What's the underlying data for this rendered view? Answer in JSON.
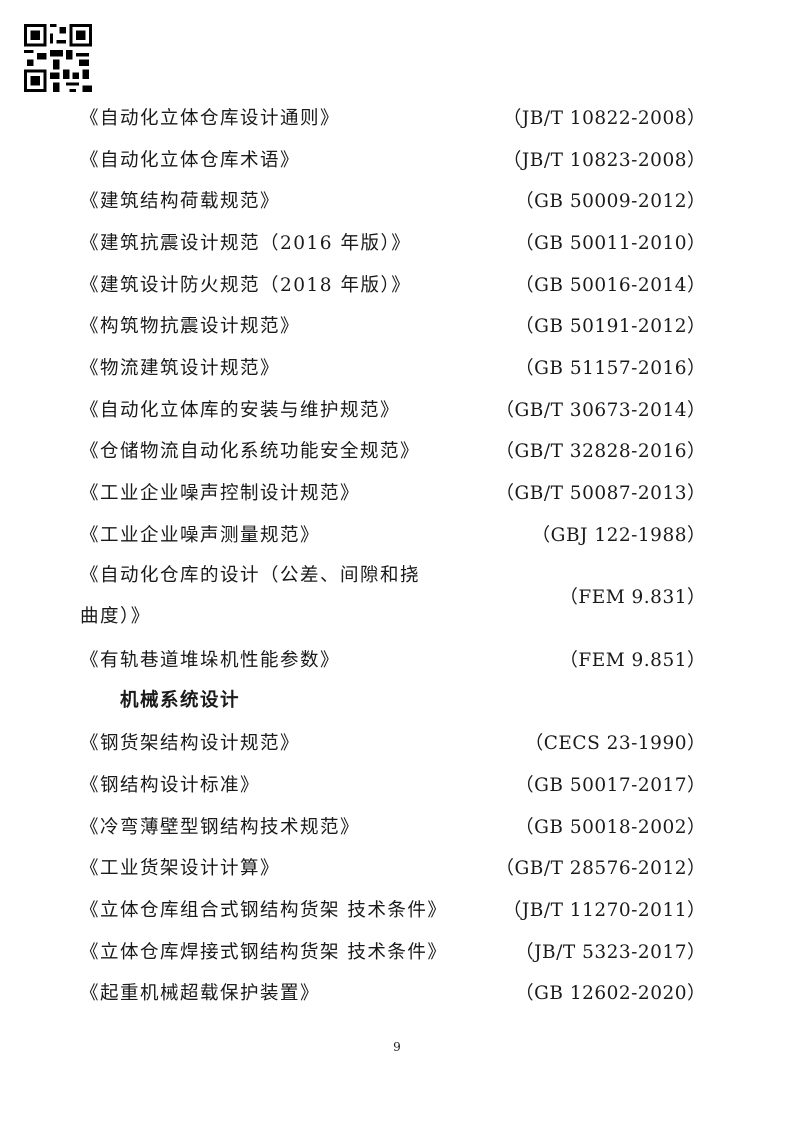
{
  "page_number": "9",
  "sections": [
    {
      "heading": "",
      "items": [
        {
          "title": [
            "《自动化立体仓库设计通则》"
          ],
          "code": "（JB/T 10822-2008）"
        },
        {
          "title": [
            "《自动化立体仓库术语》"
          ],
          "code": "（JB/T 10823-2008）"
        },
        {
          "title": [
            "《建筑结构荷载规范》"
          ],
          "code": "（GB 50009-2012）"
        },
        {
          "title": [
            "《建筑抗震设计规范（2016 年版）》"
          ],
          "code": "（GB 50011-2010）"
        },
        {
          "title": [
            "《建筑设计防火规范（2018 年版）》"
          ],
          "code": "（GB 50016-2014）"
        },
        {
          "title": [
            "《构筑物抗震设计规范》"
          ],
          "code": "（GB 50191-2012）"
        },
        {
          "title": [
            "《物流建筑设计规范》"
          ],
          "code": "（GB 51157-2016）"
        },
        {
          "title": [
            "《自动化立体库的安装与维护规范》"
          ],
          "code": "（GB/T 30673-2014）"
        },
        {
          "title": [
            "《仓储物流自动化系统功能安全规范》"
          ],
          "code": "（GB/T 32828-2016）"
        },
        {
          "title": [
            "《工业企业噪声控制设计规范》"
          ],
          "code": "（GB/T 50087-2013）"
        },
        {
          "title": [
            "《工业企业噪声测量规范》"
          ],
          "code": "（GBJ 122-1988）"
        },
        {
          "title": [
            "《自动化仓库的设计（公差、间隙和挠",
            "曲度）》"
          ],
          "code": "（FEM 9.831）"
        },
        {
          "title": [
            "《有轨巷道堆垛机性能参数》"
          ],
          "code": "（FEM 9.851）"
        }
      ]
    },
    {
      "heading": "机械系统设计",
      "items": [
        {
          "title": [
            "《钢货架结构设计规范》"
          ],
          "code": "（CECS 23-1990）"
        },
        {
          "title": [
            "《钢结构设计标准》"
          ],
          "code": "（GB 50017-2017）"
        },
        {
          "title": [
            "《冷弯薄壁型钢结构技术规范》"
          ],
          "code": "（GB 50018-2002）"
        },
        {
          "title": [
            "《工业货架设计计算》"
          ],
          "code": "（GB/T 28576-2012）"
        },
        {
          "title": [
            "《立体仓库组合式钢结构货架 技术条件》"
          ],
          "code": "（JB/T 11270-2011）"
        },
        {
          "title": [
            "《立体仓库焊接式钢结构货架 技术条件》"
          ],
          "code": "（JB/T 5323-2017）"
        },
        {
          "title": [
            "《起重机械超载保护装置》"
          ],
          "code": "（GB 12602-2020）"
        }
      ]
    }
  ]
}
